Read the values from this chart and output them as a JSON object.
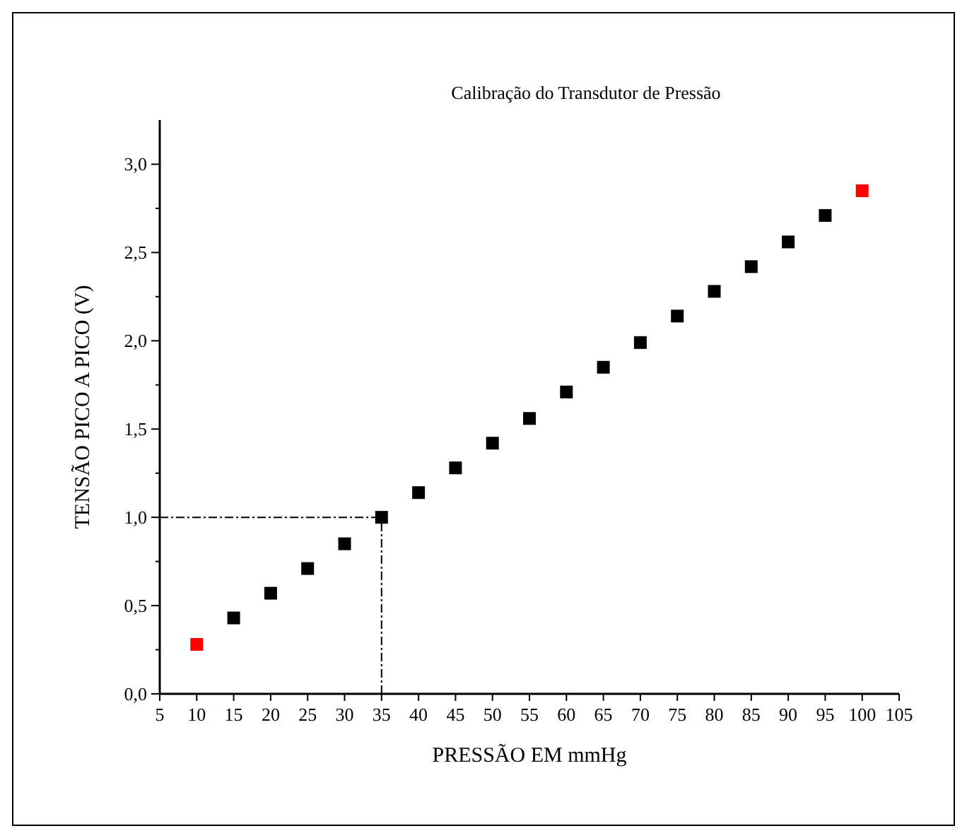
{
  "chart_data": {
    "type": "scatter",
    "title": "Calibração do Transdutor de Pressão",
    "xlabel": "PRESSÃO EM mmHg",
    "ylabel": "TENSÃO PICO A PICO (V)",
    "marker": "square",
    "grid": false,
    "xlim": [
      5,
      105
    ],
    "xticks": [
      5,
      10,
      15,
      20,
      25,
      30,
      35,
      40,
      45,
      50,
      55,
      60,
      65,
      70,
      75,
      80,
      85,
      90,
      95,
      100,
      105
    ],
    "ylim": [
      0,
      3.25
    ],
    "yticks": [
      {
        "value": 0,
        "label": "0,0"
      },
      {
        "value": 0.25,
        "label": null
      },
      {
        "value": 0.5,
        "label": "0,5"
      },
      {
        "value": 0.75,
        "label": null
      },
      {
        "value": 1,
        "label": "1,0"
      },
      {
        "value": 1.25,
        "label": null
      },
      {
        "value": 1.5,
        "label": "1,5"
      },
      {
        "value": 1.75,
        "label": null
      },
      {
        "value": 2,
        "label": "2,0"
      },
      {
        "value": 2.25,
        "label": null
      },
      {
        "value": 2.5,
        "label": "2,5"
      },
      {
        "value": 2.75,
        "label": null
      },
      {
        "value": 3,
        "label": "3,0"
      }
    ],
    "series": [
      {
        "color": "#000000",
        "x": [
          15,
          20,
          25,
          30,
          35,
          40,
          45,
          50,
          55,
          60,
          65,
          70,
          75,
          80,
          85,
          90,
          95
        ],
        "values": [
          0.43,
          0.57,
          0.71,
          0.85,
          1.0,
          1.14,
          1.28,
          1.42,
          1.56,
          1.71,
          1.85,
          1.99,
          2.14,
          2.28,
          2.42,
          2.56,
          2.71
        ]
      },
      {
        "color": "#ff0000",
        "x": [
          10,
          100
        ],
        "values": [
          0.28,
          2.85
        ]
      }
    ],
    "ref_lines": [
      {
        "axis": "y",
        "value": 1.0,
        "line_style": "dashdot",
        "color": "#000000"
      },
      {
        "axis": "x",
        "value": 35,
        "line_style": "dashdot",
        "color": "#000000"
      }
    ]
  }
}
